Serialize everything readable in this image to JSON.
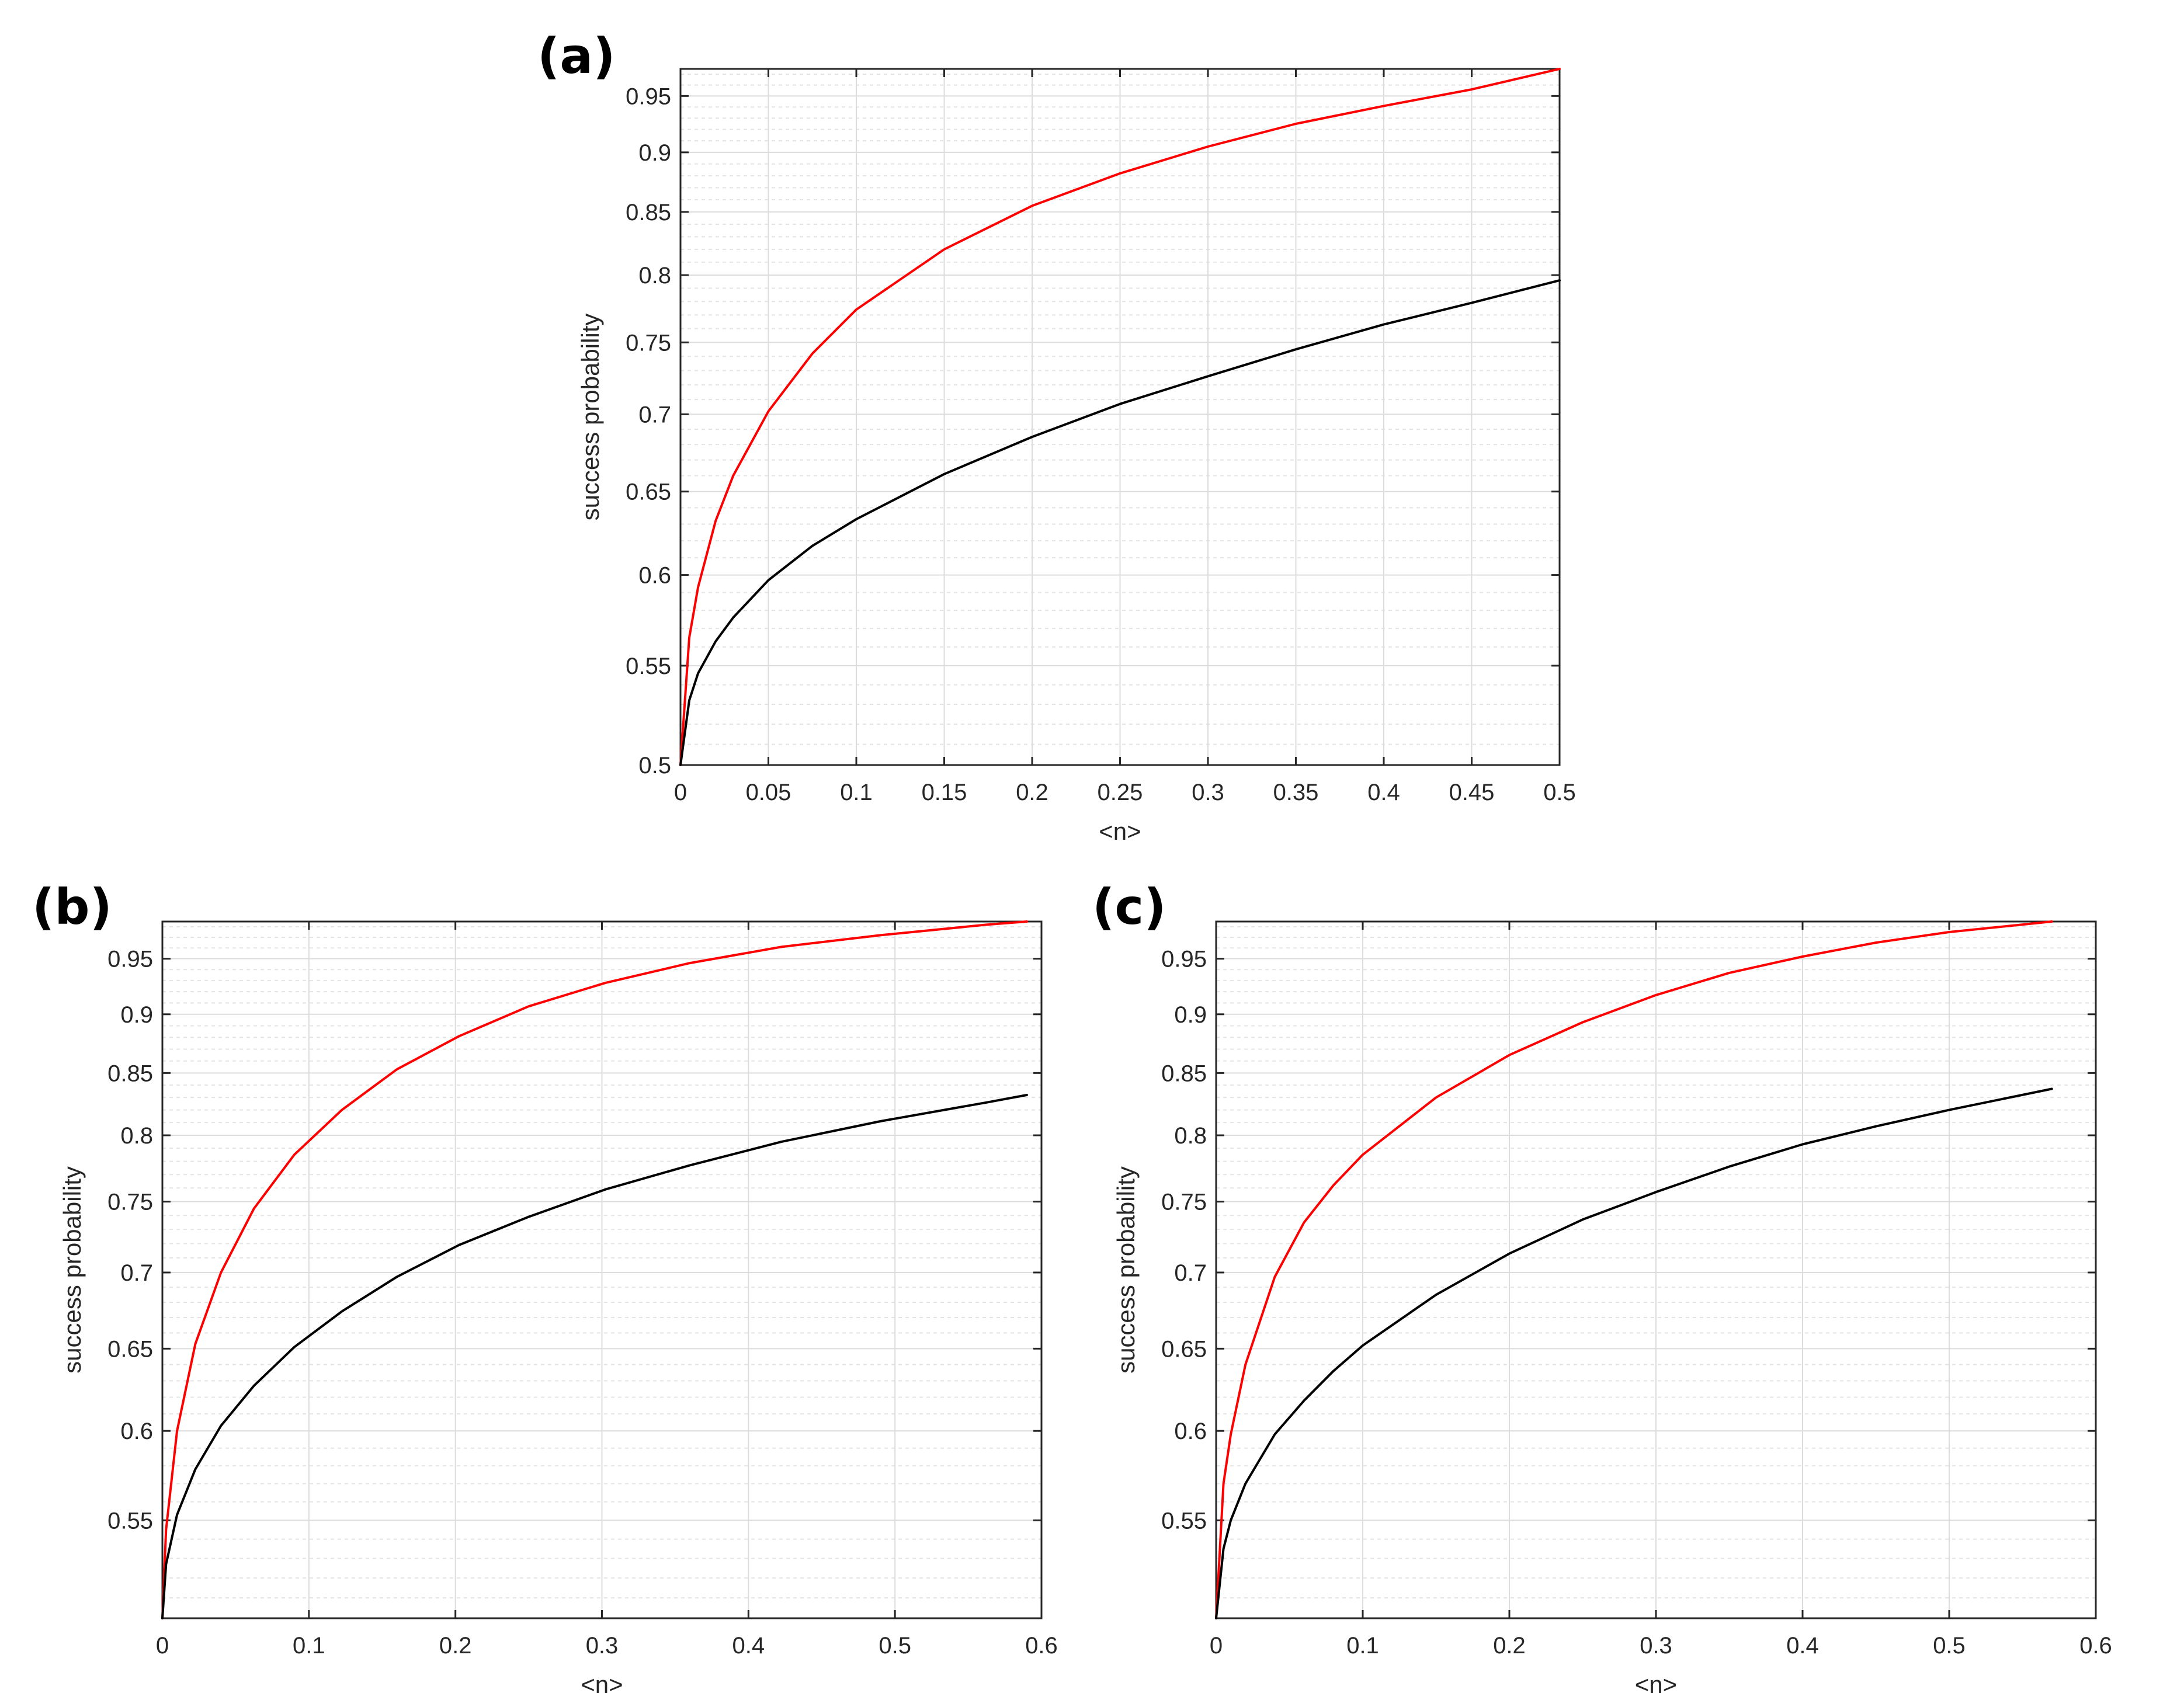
{
  "chart_data": [
    {
      "panel_label": "(a)",
      "type": "line",
      "xlabel": "<n>",
      "ylabel": "success probability",
      "xlim": [
        0,
        0.5
      ],
      "ylim": [
        0.5,
        0.975
      ],
      "y_scale": "log",
      "grid": true,
      "minor_grid": true,
      "xticks": [
        0,
        0.05,
        0.1,
        0.15,
        0.2,
        0.25,
        0.3,
        0.35,
        0.4,
        0.45,
        0.5
      ],
      "xtick_labels": [
        "0",
        "0.05",
        "0.1",
        "0.15",
        "0.2",
        "0.25",
        "0.3",
        "0.35",
        "0.4",
        "0.45",
        "0.5"
      ],
      "yticks": [
        0.5,
        0.55,
        0.6,
        0.65,
        0.7,
        0.75,
        0.8,
        0.85,
        0.9,
        0.95
      ],
      "ytick_labels": [
        "0.5",
        "0.55",
        "0.6",
        "0.65",
        "0.7",
        "0.75",
        "0.8",
        "0.85",
        "0.9",
        "0.95"
      ],
      "series": [
        {
          "color": "#ff0000",
          "x": [
            0,
            0.005,
            0.01,
            0.02,
            0.03,
            0.05,
            0.075,
            0.1,
            0.15,
            0.2,
            0.25,
            0.3,
            0.35,
            0.4,
            0.45,
            0.5
          ],
          "y": [
            0.5,
            0.565,
            0.593,
            0.632,
            0.66,
            0.702,
            0.742,
            0.774,
            0.82,
            0.855,
            0.882,
            0.905,
            0.925,
            0.941,
            0.956,
            0.975
          ]
        },
        {
          "color": "#000000",
          "x": [
            0,
            0.005,
            0.01,
            0.02,
            0.03,
            0.05,
            0.075,
            0.1,
            0.15,
            0.2,
            0.25,
            0.3,
            0.35,
            0.4,
            0.45,
            0.5
          ],
          "y": [
            0.5,
            0.532,
            0.546,
            0.563,
            0.576,
            0.597,
            0.617,
            0.633,
            0.661,
            0.685,
            0.707,
            0.726,
            0.745,
            0.763,
            0.779,
            0.796
          ]
        }
      ]
    },
    {
      "panel_label": "(b)",
      "type": "line",
      "xlabel": "<n>",
      "ylabel": "success probability",
      "xlim": [
        0,
        0.6
      ],
      "ylim": [
        0.5,
        0.985
      ],
      "y_scale": "log",
      "grid": true,
      "minor_grid": true,
      "xticks": [
        0,
        0.1,
        0.2,
        0.3,
        0.4,
        0.5,
        0.6
      ],
      "xtick_labels": [
        "0",
        "0.1",
        "0.2",
        "0.3",
        "0.4",
        "0.5",
        "0.6"
      ],
      "yticks": [
        0.55,
        0.6,
        0.65,
        0.7,
        0.75,
        0.8,
        0.85,
        0.9,
        0.95
      ],
      "ytick_labels": [
        "0.55",
        "0.6",
        "0.65",
        "0.7",
        "0.75",
        "0.8",
        "0.85",
        "0.9",
        "0.95"
      ],
      "series": [
        {
          "color": "#ff0000",
          "x": [
            0,
            0.0025,
            0.01,
            0.0225,
            0.04,
            0.0625,
            0.09,
            0.1225,
            0.16,
            0.2025,
            0.25,
            0.3025,
            0.36,
            0.4225,
            0.49,
            0.5625,
            0.59
          ],
          "y": [
            0.5,
            0.545,
            0.6,
            0.653,
            0.7,
            0.745,
            0.785,
            0.82,
            0.853,
            0.881,
            0.907,
            0.928,
            0.946,
            0.961,
            0.972,
            0.982,
            0.985
          ]
        },
        {
          "color": "#000000",
          "x": [
            0,
            0.0025,
            0.01,
            0.0225,
            0.04,
            0.0625,
            0.09,
            0.1225,
            0.16,
            0.2025,
            0.25,
            0.3025,
            0.36,
            0.4225,
            0.49,
            0.5625,
            0.59
          ],
          "y": [
            0.5,
            0.527,
            0.553,
            0.578,
            0.603,
            0.627,
            0.651,
            0.674,
            0.697,
            0.719,
            0.739,
            0.759,
            0.777,
            0.795,
            0.811,
            0.826,
            0.832
          ]
        }
      ]
    },
    {
      "panel_label": "(c)",
      "type": "line",
      "xlabel": "<n>",
      "ylabel": "success probability",
      "xlim": [
        0,
        0.6
      ],
      "ylim": [
        0.5,
        0.985
      ],
      "y_scale": "log",
      "grid": true,
      "minor_grid": true,
      "xticks": [
        0,
        0.1,
        0.2,
        0.3,
        0.4,
        0.5,
        0.6
      ],
      "xtick_labels": [
        "0",
        "0.1",
        "0.2",
        "0.3",
        "0.4",
        "0.5",
        "0.6"
      ],
      "yticks": [
        0.55,
        0.6,
        0.65,
        0.7,
        0.75,
        0.8,
        0.85,
        0.9,
        0.95
      ],
      "ytick_labels": [
        "0.55",
        "0.6",
        "0.65",
        "0.7",
        "0.75",
        "0.8",
        "0.85",
        "0.9",
        "0.95"
      ],
      "series": [
        {
          "color": "#ff0000",
          "x": [
            0,
            0.005,
            0.01,
            0.02,
            0.04,
            0.06,
            0.08,
            0.1,
            0.15,
            0.2,
            0.25,
            0.3,
            0.35,
            0.4,
            0.45,
            0.5,
            0.57
          ],
          "y": [
            0.5,
            0.57,
            0.598,
            0.64,
            0.697,
            0.735,
            0.762,
            0.785,
            0.83,
            0.865,
            0.893,
            0.917,
            0.937,
            0.952,
            0.965,
            0.975,
            0.985
          ]
        },
        {
          "color": "#000000",
          "x": [
            0,
            0.005,
            0.01,
            0.02,
            0.04,
            0.06,
            0.08,
            0.1,
            0.15,
            0.2,
            0.25,
            0.3,
            0.35,
            0.4,
            0.45,
            0.5,
            0.57
          ],
          "y": [
            0.5,
            0.535,
            0.55,
            0.57,
            0.598,
            0.618,
            0.636,
            0.652,
            0.685,
            0.713,
            0.737,
            0.757,
            0.776,
            0.793,
            0.807,
            0.82,
            0.837
          ]
        }
      ]
    }
  ]
}
